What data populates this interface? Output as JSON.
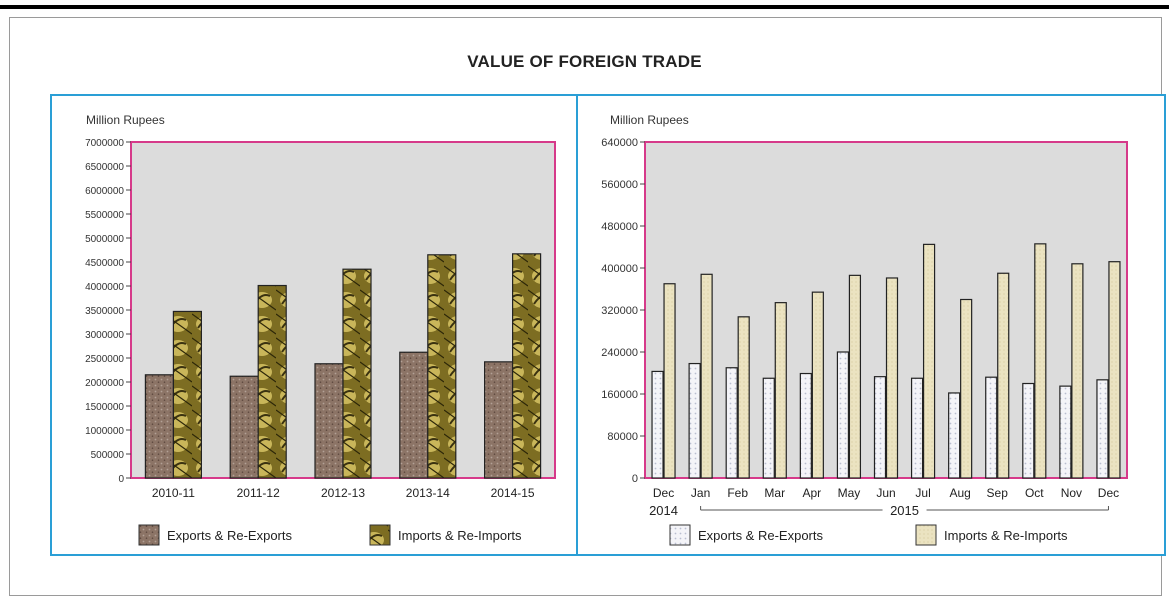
{
  "title": "VALUE OF FOREIGN TRADE",
  "chart_data": [
    {
      "type": "bar",
      "ylabel": "Million Rupees",
      "ylim": [
        0,
        7000000
      ],
      "yticks": [
        0,
        500000,
        1000000,
        1500000,
        2000000,
        2500000,
        3000000,
        3500000,
        4000000,
        4500000,
        5000000,
        5500000,
        6000000,
        6500000,
        7000000
      ],
      "categories": [
        "2010-11",
        "2011-12",
        "2012-13",
        "2013-14",
        "2014-15"
      ],
      "series": [
        {
          "name": "Exports & Re-Exports",
          "values": [
            2150000,
            2120000,
            2380000,
            2620000,
            2420000
          ],
          "color": "#8c7466"
        },
        {
          "name": "Imports & Re-Imports",
          "values": [
            3470000,
            4010000,
            4350000,
            4650000,
            4670000
          ],
          "color": "#8a7a2a"
        }
      ],
      "plot_bg": "#dcdcdc",
      "plot_border": "#d63a8a",
      "legend_position": "bottom"
    },
    {
      "type": "bar",
      "ylabel": "Million Rupees",
      "ylim": [
        0,
        640000
      ],
      "yticks": [
        0,
        80000,
        160000,
        240000,
        320000,
        400000,
        480000,
        560000,
        640000
      ],
      "categories": [
        "Dec",
        "Jan",
        "Feb",
        "Mar",
        "Apr",
        "May",
        "Jun",
        "Jul",
        "Aug",
        "Sep",
        "Oct",
        "Nov",
        "Dec"
      ],
      "year_labels": [
        "2014",
        "2015"
      ],
      "series": [
        {
          "name": "Exports & Re-Exports",
          "values": [
            203000,
            218000,
            210000,
            190000,
            199000,
            240000,
            193000,
            190000,
            162000,
            192000,
            180000,
            175000,
            187000
          ],
          "color": "#f2f2f6"
        },
        {
          "name": "Imports & Re-Imports",
          "values": [
            370000,
            388000,
            307000,
            334000,
            354000,
            386000,
            381000,
            445000,
            340000,
            390000,
            446000,
            408000,
            412000
          ],
          "color": "#e8dfb8"
        }
      ],
      "plot_bg": "#dcdcdc",
      "plot_border": "#d63a8a",
      "legend_position": "bottom"
    }
  ]
}
